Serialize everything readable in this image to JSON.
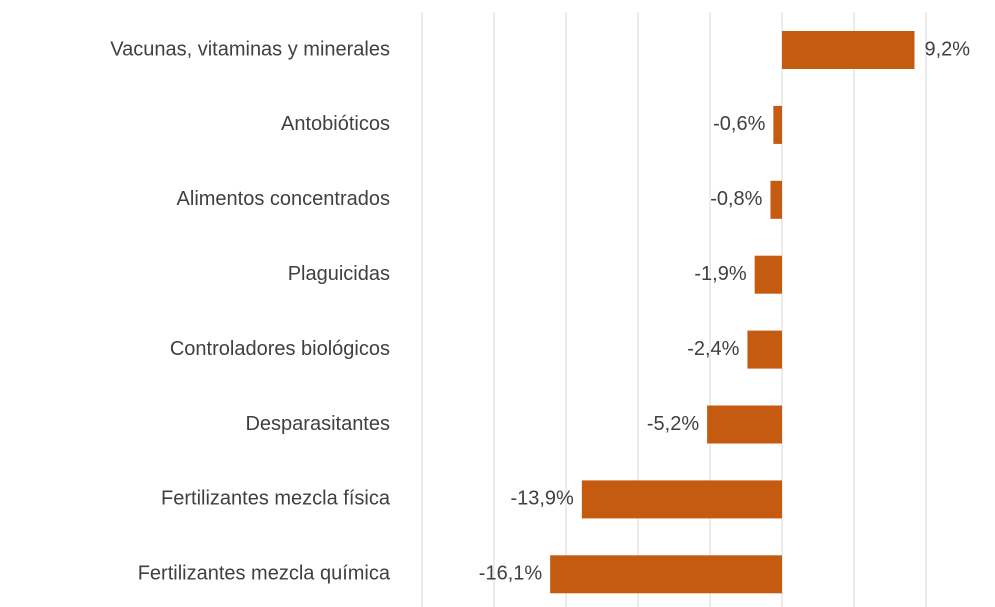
{
  "chart_data": {
    "type": "barh",
    "categories": [
      "Vacunas, vitaminas y minerales",
      "Antobióticos",
      "Alimentos concentrados",
      "Plaguicidas",
      "Controladores biológicos",
      "Desparasitantes",
      "Fertilizantes mezcla física",
      "Fertilizantes mezcla química"
    ],
    "values": [
      9.2,
      -0.6,
      -0.8,
      -1.9,
      -2.4,
      -5.2,
      -13.9,
      -16.1
    ],
    "value_labels": [
      "9,2%",
      "-0,6%",
      "-0,8%",
      "-1,9%",
      "-2,4%",
      "-5,2%",
      "-13,9%",
      "-16,1%"
    ],
    "color": "#c55a11",
    "xlim": [
      -25,
      10
    ],
    "xticks": [
      -25,
      -20,
      -15,
      -10,
      -5,
      0,
      5,
      10
    ],
    "grid": true
  }
}
